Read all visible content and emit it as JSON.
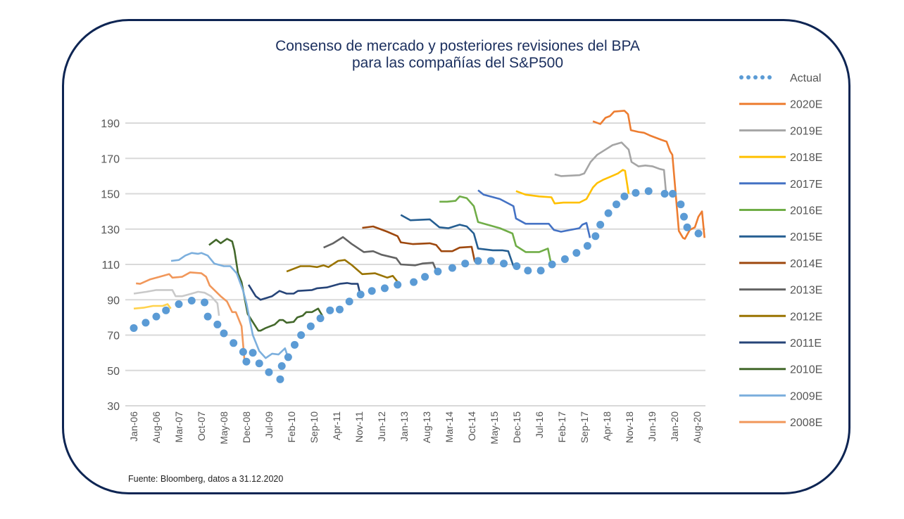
{
  "chart_data": {
    "type": "line",
    "title": "Consenso de mercado y posteriores revisiones del BPA",
    "subtitle": "para las compañías del S&P500",
    "source": "Fuente: Bloomberg, datos a 31.12.2020",
    "x_unit": "months since Jan-06",
    "xlim": [
      0,
      179
    ],
    "ylim": [
      30,
      190
    ],
    "yticks": [
      30,
      50,
      70,
      90,
      110,
      130,
      150,
      170,
      190
    ],
    "xtick_labels": [
      "Jan-06",
      "Aug-06",
      "Mar-07",
      "Oct-07",
      "May-08",
      "Dec-08",
      "Jul-09",
      "Feb-10",
      "Sep-10",
      "Apr-11",
      "Nov-11",
      "Jun-12",
      "Jan-13",
      "Aug-13",
      "Mar-14",
      "Oct-14",
      "May-15",
      "Dec-15",
      "Jul-16",
      "Feb-17",
      "Sep-17",
      "Apr-18",
      "Nov-18",
      "Jun-19",
      "Jan-20",
      "Aug-20"
    ],
    "xtick_step_months": 7,
    "grid": true,
    "legend_position": "right",
    "legend": [
      "Actual",
      "2020E",
      "2019E",
      "2018E",
      "2017E",
      "2016E",
      "2015E",
      "2014E",
      "2013E",
      "2012E",
      "2011E",
      "2010E",
      "2009E",
      "2008E"
    ],
    "actual": {
      "name": "Actual",
      "color": "#5b9bd5",
      "points": [
        [
          0,
          74
        ],
        [
          3.7,
          77
        ],
        [
          7,
          80.5
        ],
        [
          10,
          84
        ],
        [
          14,
          87.5
        ],
        [
          18,
          89.5
        ],
        [
          22,
          88.5
        ],
        [
          23,
          80.5
        ],
        [
          26,
          76
        ],
        [
          28,
          71
        ],
        [
          31,
          65.5
        ],
        [
          34,
          60.5
        ],
        [
          35,
          55
        ],
        [
          37,
          60
        ],
        [
          39,
          54
        ],
        [
          42,
          49
        ],
        [
          45.5,
          45
        ],
        [
          46,
          52.5
        ],
        [
          48,
          57.5
        ],
        [
          50,
          64.5
        ],
        [
          52,
          70
        ],
        [
          55,
          75
        ],
        [
          58,
          79.5
        ],
        [
          61,
          84
        ],
        [
          64,
          84.5
        ],
        [
          67,
          89
        ],
        [
          70.5,
          93
        ],
        [
          74,
          95
        ],
        [
          78,
          96.5
        ],
        [
          82,
          98.5
        ],
        [
          87,
          100
        ],
        [
          90.5,
          103
        ],
        [
          94.5,
          106
        ],
        [
          99,
          108
        ],
        [
          103,
          110.5
        ],
        [
          107,
          112
        ],
        [
          111,
          112
        ],
        [
          115,
          110.5
        ],
        [
          119,
          109
        ],
        [
          122.5,
          106.5
        ],
        [
          126.5,
          106.5
        ],
        [
          130,
          110
        ],
        [
          134,
          113
        ],
        [
          137.6,
          116.5
        ],
        [
          141,
          120.5
        ],
        [
          143.5,
          126
        ],
        [
          145,
          132.5
        ],
        [
          147.5,
          139
        ],
        [
          150,
          144
        ],
        [
          152.5,
          148.5
        ],
        [
          156,
          150.5
        ],
        [
          160,
          151.5
        ],
        [
          165,
          150
        ],
        [
          167.5,
          150
        ],
        [
          170,
          144
        ],
        [
          171,
          137
        ],
        [
          172,
          131
        ],
        [
          175.5,
          127.5
        ]
      ]
    },
    "series": [
      {
        "name": "2020E",
        "color": "#ed7d31",
        "points": [
          [
            142.7,
            191
          ],
          [
            145,
            189.5
          ],
          [
            146.6,
            193
          ],
          [
            148,
            194
          ],
          [
            149.3,
            196.5
          ],
          [
            152.5,
            197
          ],
          [
            153.6,
            195
          ],
          [
            154.5,
            186
          ],
          [
            156.9,
            185
          ],
          [
            158.6,
            184.5
          ],
          [
            160.4,
            183
          ],
          [
            164,
            180.5
          ],
          [
            165.6,
            179.5
          ],
          [
            166.7,
            174
          ],
          [
            167.4,
            172
          ],
          [
            169.4,
            129
          ],
          [
            170.7,
            125
          ],
          [
            171.3,
            124.5
          ],
          [
            172.8,
            129.5
          ],
          [
            174.4,
            131
          ],
          [
            175.5,
            137
          ],
          [
            176.6,
            140
          ],
          [
            177.4,
            125
          ]
        ]
      },
      {
        "name": "2019E",
        "color": "#a5a5a5",
        "points": [
          [
            130.8,
            161
          ],
          [
            132.8,
            160
          ],
          [
            138.5,
            160.5
          ],
          [
            140,
            161.5
          ],
          [
            142,
            168
          ],
          [
            144,
            172
          ],
          [
            146.6,
            175
          ],
          [
            148.8,
            177.5
          ],
          [
            151.6,
            179
          ],
          [
            153.8,
            175
          ],
          [
            154.7,
            168
          ],
          [
            156.9,
            165.5
          ],
          [
            159,
            166
          ],
          [
            161.3,
            165.5
          ],
          [
            163.5,
            164
          ],
          [
            164.8,
            163.5
          ],
          [
            165.4,
            151
          ]
        ]
      },
      {
        "name": "2018E",
        "color": "#ffc000",
        "points": [
          [
            118.8,
            151.5
          ],
          [
            121.8,
            149.5
          ],
          [
            126,
            148.5
          ],
          [
            129.8,
            148
          ],
          [
            130.8,
            144.5
          ],
          [
            133.5,
            145
          ],
          [
            138.5,
            145
          ],
          [
            140.7,
            147
          ],
          [
            142.7,
            153.5
          ],
          [
            144,
            156
          ],
          [
            146,
            158
          ],
          [
            148,
            159.5
          ],
          [
            150.5,
            161.5
          ],
          [
            152,
            163.5
          ],
          [
            152.7,
            163
          ],
          [
            153.8,
            150
          ]
        ]
      },
      {
        "name": "2017E",
        "color": "#4472c4",
        "points": [
          [
            107,
            152
          ],
          [
            108.7,
            149.5
          ],
          [
            113.8,
            147
          ],
          [
            118,
            143
          ],
          [
            118.8,
            136
          ],
          [
            121.8,
            133
          ],
          [
            124.7,
            133
          ],
          [
            129,
            133
          ],
          [
            130.6,
            129.5
          ],
          [
            132.8,
            128.5
          ],
          [
            135.6,
            129.5
          ],
          [
            138.5,
            130.5
          ],
          [
            139.4,
            132.5
          ],
          [
            140.7,
            133.5
          ],
          [
            141.8,
            125
          ]
        ]
      },
      {
        "name": "2016E",
        "color": "#70ad47",
        "points": [
          [
            95,
            145.5
          ],
          [
            97.4,
            145.5
          ],
          [
            100,
            146
          ],
          [
            101.3,
            148.5
          ],
          [
            103.5,
            147.5
          ],
          [
            105.7,
            143
          ],
          [
            107,
            134
          ],
          [
            110.9,
            132
          ],
          [
            113.8,
            130.5
          ],
          [
            117.7,
            127.5
          ],
          [
            118.8,
            120.5
          ],
          [
            121.8,
            117
          ],
          [
            126,
            117
          ],
          [
            128.7,
            119
          ],
          [
            129.8,
            109.5
          ]
        ]
      },
      {
        "name": "2015E",
        "color": "#255e91",
        "points": [
          [
            83,
            138
          ],
          [
            86,
            135
          ],
          [
            92,
            135.5
          ],
          [
            95,
            131
          ],
          [
            97.8,
            130.5
          ],
          [
            101.3,
            132.5
          ],
          [
            103.5,
            131.5
          ],
          [
            105.7,
            127.5
          ],
          [
            107,
            119
          ],
          [
            111.6,
            118
          ],
          [
            114.5,
            118
          ],
          [
            116.4,
            117.5
          ],
          [
            118,
            109
          ]
        ]
      },
      {
        "name": "2014E",
        "color": "#9e480e",
        "points": [
          [
            71,
            130.7
          ],
          [
            74.4,
            131.5
          ],
          [
            78.8,
            128.5
          ],
          [
            82,
            126
          ],
          [
            83,
            122.5
          ],
          [
            86.8,
            121.5
          ],
          [
            92,
            122
          ],
          [
            94,
            121
          ],
          [
            95.6,
            117.5
          ],
          [
            99,
            117.5
          ],
          [
            101.3,
            119.5
          ],
          [
            105,
            120
          ],
          [
            106,
            111.5
          ]
        ]
      },
      {
        "name": "2013E",
        "color": "#636363",
        "points": [
          [
            59,
            119.5
          ],
          [
            62,
            122
          ],
          [
            65,
            125.5
          ],
          [
            67.8,
            121.5
          ],
          [
            71.5,
            117
          ],
          [
            74.4,
            117.5
          ],
          [
            77,
            115.5
          ],
          [
            81.6,
            113.5
          ],
          [
            83,
            110
          ],
          [
            87.5,
            109.5
          ],
          [
            89.7,
            110.5
          ],
          [
            93,
            111
          ],
          [
            94,
            106.5
          ]
        ]
      },
      {
        "name": "2012E",
        "color": "#997300",
        "points": [
          [
            47.5,
            106
          ],
          [
            51.8,
            109
          ],
          [
            54.7,
            109
          ],
          [
            57,
            108.5
          ],
          [
            59,
            109.5
          ],
          [
            60.5,
            108.5
          ],
          [
            63.5,
            112
          ],
          [
            65.6,
            112.5
          ],
          [
            67.8,
            109.6
          ],
          [
            71,
            104.5
          ],
          [
            75,
            105
          ],
          [
            78.8,
            102.5
          ],
          [
            80.5,
            103.5
          ],
          [
            82.5,
            99
          ]
        ]
      },
      {
        "name": "2011E",
        "color": "#264478",
        "points": [
          [
            35.7,
            98.5
          ],
          [
            37.9,
            92
          ],
          [
            39.4,
            90
          ],
          [
            43,
            92
          ],
          [
            45.3,
            95
          ],
          [
            47.5,
            93.5
          ],
          [
            49.7,
            93.5
          ],
          [
            51,
            95
          ],
          [
            55.4,
            95.5
          ],
          [
            57,
            96.5
          ],
          [
            60,
            97
          ],
          [
            64,
            99
          ],
          [
            66.3,
            99.5
          ],
          [
            67.8,
            99
          ],
          [
            69.6,
            99
          ],
          [
            70.4,
            93
          ]
        ]
      },
      {
        "name": "2010E",
        "color": "#43682b",
        "points": [
          [
            23.4,
            121
          ],
          [
            25.6,
            124
          ],
          [
            27,
            122
          ],
          [
            29,
            124.5
          ],
          [
            30.6,
            123
          ],
          [
            31.3,
            118
          ],
          [
            32.4,
            105
          ],
          [
            33.5,
            100
          ],
          [
            35.4,
            82
          ],
          [
            38.7,
            72.5
          ],
          [
            39.4,
            72.5
          ],
          [
            41,
            74
          ],
          [
            43.8,
            76
          ],
          [
            45.3,
            78.5
          ],
          [
            46.4,
            78.5
          ],
          [
            47.5,
            77
          ],
          [
            49.7,
            77.5
          ],
          [
            50.8,
            80
          ],
          [
            52.5,
            81
          ],
          [
            53.6,
            83
          ],
          [
            55.4,
            83
          ],
          [
            57.3,
            85
          ],
          [
            58.6,
            81
          ]
        ]
      },
      {
        "name": "2009E",
        "color": "#7cafdd",
        "points": [
          [
            11.6,
            112
          ],
          [
            14,
            112.5
          ],
          [
            16,
            115
          ],
          [
            18,
            116.5
          ],
          [
            20,
            116
          ],
          [
            21,
            116.5
          ],
          [
            23,
            115
          ],
          [
            25,
            110.5
          ],
          [
            28,
            109
          ],
          [
            30,
            109
          ],
          [
            32,
            105
          ],
          [
            34,
            95
          ],
          [
            35,
            88
          ],
          [
            37,
            70
          ],
          [
            39,
            61
          ],
          [
            41,
            57
          ],
          [
            43,
            59.5
          ],
          [
            45,
            59
          ],
          [
            47,
            62.5
          ],
          [
            48,
            57
          ]
        ]
      },
      {
        "name": "2008E",
        "color": "#f1975a",
        "points": [
          [
            0.7,
            99.3
          ],
          [
            2,
            99
          ],
          [
            5,
            101.5
          ],
          [
            8,
            103
          ],
          [
            11,
            104.5
          ],
          [
            12,
            102.5
          ],
          [
            15,
            103
          ],
          [
            17.5,
            105.5
          ],
          [
            21,
            105
          ],
          [
            22.5,
            103
          ],
          [
            23.6,
            98
          ],
          [
            27,
            92
          ],
          [
            29,
            89
          ],
          [
            30.6,
            83
          ],
          [
            31.7,
            83
          ],
          [
            33.5,
            75
          ],
          [
            34.4,
            56
          ]
        ]
      },
      {
        "color": "#c9c9c9",
        "points": [
          [
            0,
            93.5
          ],
          [
            4,
            94.5
          ],
          [
            7,
            95.5
          ],
          [
            10,
            95.5
          ],
          [
            12,
            95.5
          ],
          [
            13,
            92
          ],
          [
            15,
            92
          ],
          [
            18,
            93.5
          ],
          [
            20,
            94.5
          ],
          [
            22,
            94
          ],
          [
            24,
            92
          ],
          [
            26,
            88
          ],
          [
            26.5,
            81
          ]
        ]
      },
      {
        "color": "#ffd24d",
        "points": [
          [
            0,
            85
          ],
          [
            3,
            85.5
          ],
          [
            6,
            86.5
          ],
          [
            9,
            86.5
          ],
          [
            10.5,
            87.5
          ],
          [
            11.5,
            85
          ]
        ]
      }
    ]
  }
}
